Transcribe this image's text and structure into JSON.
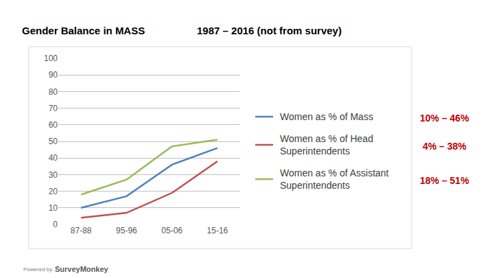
{
  "chart_data": {
    "type": "line",
    "title": "Gender Balance in MASS",
    "subtitle": "1987 – 2016 (not from survey)",
    "categories": [
      "87-88",
      "95-96",
      "05-06",
      "15-16"
    ],
    "series": [
      {
        "name": "Women as % of Mass",
        "color": "#4f81bd",
        "values": [
          10,
          17,
          36,
          46
        ],
        "annotation": "10% – 46%"
      },
      {
        "name": "Women as % of Head Superintendents",
        "color": "#c0504d",
        "values": [
          4,
          7,
          19,
          38
        ],
        "annotation": "4% – 38%"
      },
      {
        "name": "Women as % of Assistant Superintendents",
        "color": "#9bbb59",
        "values": [
          18,
          27,
          47,
          51
        ],
        "annotation": "18% – 51%"
      }
    ],
    "ylim": [
      0,
      100
    ],
    "yticks": [
      0,
      10,
      20,
      30,
      40,
      50,
      60,
      70,
      80,
      90,
      100
    ],
    "grid": true,
    "legend": "right",
    "footer": [
      "Powered by",
      "SurveyMonkey"
    ]
  }
}
